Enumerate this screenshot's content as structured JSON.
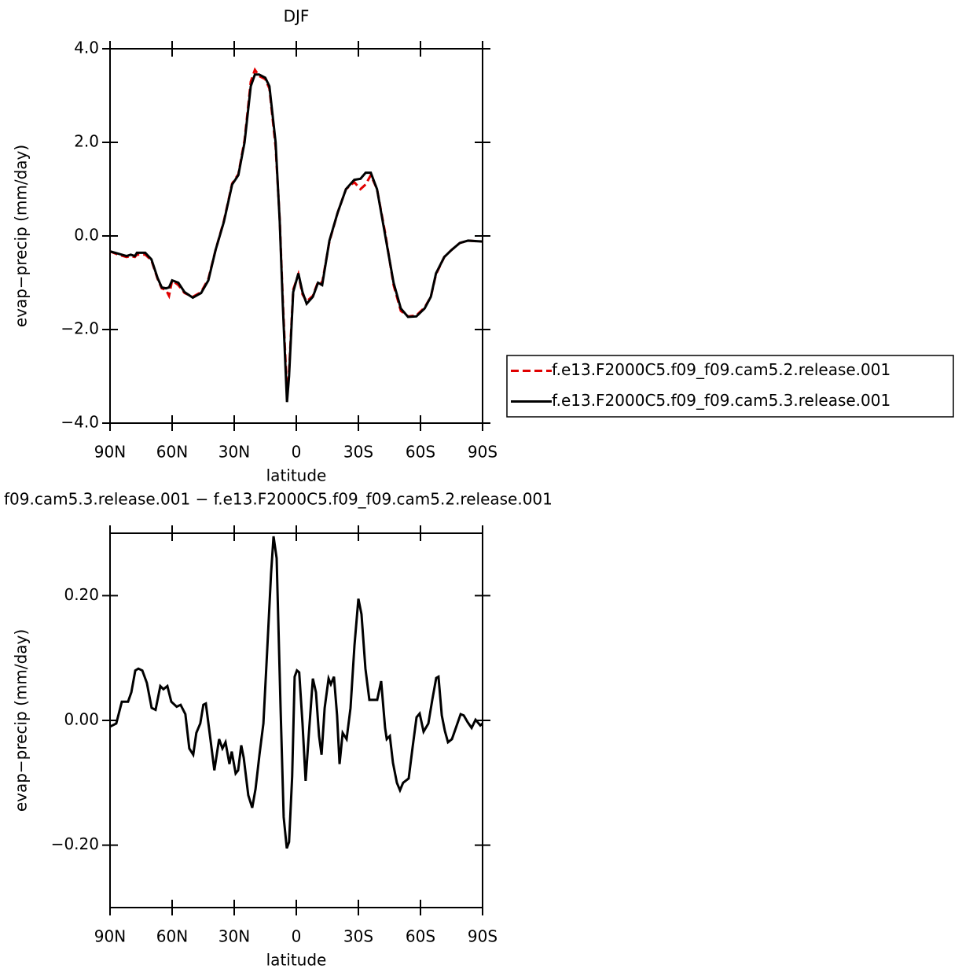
{
  "chart_data": [
    {
      "type": "line",
      "title": "DJF",
      "xlabel": "latitude",
      "ylabel": "evap−precip (mm/day)",
      "x": [
        90,
        86,
        82,
        80,
        78,
        77,
        73,
        70,
        67,
        65,
        63,
        61.5,
        60,
        57,
        54,
        50,
        46,
        42.5,
        39,
        35,
        31,
        28,
        25,
        22,
        20,
        18,
        15,
        13,
        10,
        8,
        6.5,
        4.5,
        3.5,
        1.5,
        -1,
        -3,
        -5,
        -8,
        -10.5,
        -12.5,
        -16,
        -20,
        -24,
        -28,
        -31,
        -33.5,
        -36,
        -39,
        -43,
        -47,
        -50.5,
        -54,
        -58,
        -62,
        -65,
        -67.5,
        -71.5,
        -75,
        -79,
        -83,
        -90
      ],
      "series": [
        {
          "name": "f.e13.F2000C5.f09_f09.cam5.2.release.001",
          "color": "#e00000",
          "dash": true,
          "values": [
            -0.33,
            -0.4,
            -0.45,
            -0.43,
            -0.45,
            -0.4,
            -0.4,
            -0.52,
            -0.92,
            -1.12,
            -1.15,
            -1.28,
            -0.95,
            -1.05,
            -1.22,
            -1.3,
            -1.2,
            -0.92,
            -0.3,
            0.32,
            1.12,
            1.32,
            2.05,
            3.3,
            3.55,
            3.42,
            3.35,
            3.15,
            1.9,
            0.35,
            -1.4,
            -3.35,
            -2.9,
            -1.15,
            -0.82,
            -1.25,
            -1.4,
            -1.28,
            -0.98,
            -1.0,
            -0.12,
            0.5,
            1.0,
            1.15,
            1.0,
            1.1,
            1.3,
            1.0,
            0.05,
            -1.05,
            -1.6,
            -1.72,
            -1.7,
            -1.53,
            -1.3,
            -0.82,
            -0.45,
            -0.3,
            -0.15,
            -0.1,
            -0.12
          ]
        },
        {
          "name": "f.e13.F2000C5.f09_f09.cam5.3.release.001",
          "color": "#000000",
          "dash": false,
          "values": [
            -0.33,
            -0.38,
            -0.43,
            -0.4,
            -0.43,
            -0.36,
            -0.36,
            -0.5,
            -0.9,
            -1.1,
            -1.12,
            -1.1,
            -0.95,
            -1.0,
            -1.2,
            -1.32,
            -1.22,
            -0.95,
            -0.3,
            0.3,
            1.1,
            1.3,
            2.0,
            3.2,
            3.45,
            3.45,
            3.38,
            3.2,
            2.0,
            0.3,
            -1.5,
            -3.55,
            -3.0,
            -1.2,
            -0.8,
            -1.2,
            -1.45,
            -1.3,
            -1.0,
            -1.05,
            -0.1,
            0.5,
            1.0,
            1.2,
            1.22,
            1.35,
            1.35,
            1.0,
            0.0,
            -1.0,
            -1.55,
            -1.73,
            -1.72,
            -1.55,
            -1.3,
            -0.8,
            -0.45,
            -0.3,
            -0.15,
            -0.1,
            -0.12
          ]
        }
      ],
      "xlim": [
        90,
        -90
      ],
      "xticks": [
        {
          "value": 90,
          "label": "90N"
        },
        {
          "value": 60,
          "label": "60N"
        },
        {
          "value": 30,
          "label": "30N"
        },
        0,
        {
          "value": -30,
          "label": "30S"
        },
        {
          "value": -60,
          "label": "60S"
        },
        {
          "value": -90,
          "label": "90S"
        }
      ],
      "ylim": [
        -4,
        4
      ],
      "yticks": [
        {
          "value": -4,
          "label": "−4.0"
        },
        {
          "value": -2,
          "label": "−2.0"
        },
        {
          "value": 0,
          "label": "0.0"
        },
        {
          "value": 2,
          "label": "2.0"
        },
        {
          "value": 4,
          "label": "4.0"
        }
      ],
      "legend": "right"
    },
    {
      "type": "line",
      "title": "f09.cam5.3.release.001 − f.e13.F2000C5.f09_f09.cam5.2.release.001",
      "xlabel": "latitude",
      "ylabel": "evap−precip (mm/day)",
      "x": [
        90,
        87.0,
        84.3,
        81.3,
        79.7,
        77.8,
        76.3,
        74.4,
        72.2,
        69.9,
        68.0,
        65.7,
        64.2,
        62.3,
        60.4,
        57.8,
        55.9,
        53.6,
        51.7,
        49.8,
        48.3,
        46.4,
        44.9,
        43.7,
        41.5,
        39.6,
        37.3,
        35.7,
        34.2,
        32.3,
        31.2,
        29.3,
        28.1,
        26.6,
        25.4,
        23.2,
        21.3,
        19.7,
        17.8,
        15.9,
        14.1,
        12.2,
        11.0,
        9.5,
        7.6,
        6.1,
        4.6,
        3.5,
        2.0,
        0.8,
        -0.3,
        -1.4,
        -3.0,
        -4.5,
        -6.1,
        -8.0,
        -9.5,
        -11.0,
        -12.2,
        -13.7,
        -15.6,
        -16.7,
        -18.2,
        -19.7,
        -20.9,
        -22.4,
        -24.3,
        -26.2,
        -28.1,
        -30.0,
        -31.5,
        -33.4,
        -35.3,
        -36.8,
        -39.1,
        -41.0,
        -42.9,
        -43.7,
        -45.2,
        -46.7,
        -48.6,
        -50.1,
        -51.6,
        -54.3,
        -56.2,
        -58.1,
        -59.6,
        -61.5,
        -63.8,
        -65.7,
        -67.6,
        -68.7,
        -70.3,
        -71.8,
        -73.3,
        -75.2,
        -77.1,
        -79.4,
        -80.9,
        -82.8,
        -84.7,
        -86.6,
        -88.9,
        -90
      ],
      "series": [
        {
          "color": "#000000",
          "dash": false,
          "values": [
            -0.01,
            -0.005,
            0.03,
            0.03,
            0.045,
            0.08,
            0.083,
            0.08,
            0.06,
            0.02,
            0.017,
            0.055,
            0.05,
            0.055,
            0.03,
            0.022,
            0.025,
            0.01,
            -0.045,
            -0.055,
            -0.02,
            -0.005,
            0.025,
            0.027,
            -0.03,
            -0.08,
            -0.03,
            -0.045,
            -0.035,
            -0.07,
            -0.05,
            -0.085,
            -0.08,
            -0.04,
            -0.06,
            -0.12,
            -0.14,
            -0.11,
            -0.055,
            -0.005,
            0.11,
            0.235,
            0.295,
            0.26,
            0.02,
            -0.155,
            -0.205,
            -0.195,
            -0.09,
            0.07,
            0.08,
            0.077,
            -0.005,
            -0.097,
            -0.02,
            0.067,
            0.045,
            -0.025,
            -0.055,
            0.02,
            0.067,
            0.058,
            0.07,
            0.008,
            -0.07,
            -0.02,
            -0.03,
            0.02,
            0.12,
            0.195,
            0.17,
            0.083,
            0.033,
            0.033,
            0.033,
            0.063,
            -0.012,
            -0.03,
            -0.025,
            -0.068,
            -0.1,
            -0.112,
            -0.1,
            -0.093,
            -0.043,
            0.005,
            0.011,
            -0.018,
            -0.005,
            0.033,
            0.068,
            0.07,
            0.008,
            -0.017,
            -0.035,
            -0.03,
            -0.012,
            0.01,
            0.008,
            -0.003,
            -0.012,
            0.001,
            -0.008,
            -0.005
          ]
        }
      ],
      "xlim": [
        90,
        -90
      ],
      "xticks": [
        {
          "value": 90,
          "label": "90N"
        },
        {
          "value": 60,
          "label": "60N"
        },
        {
          "value": 30,
          "label": "30N"
        },
        0,
        {
          "value": -30,
          "label": "30S"
        },
        {
          "value": -60,
          "label": "60S"
        },
        {
          "value": -90,
          "label": "90S"
        }
      ],
      "ylim": [
        -0.3,
        0.3
      ],
      "yticks": [
        {
          "value": -0.2,
          "label": "−0.20"
        },
        {
          "value": 0,
          "label": "0.00"
        },
        {
          "value": 0.2,
          "label": "0.20"
        }
      ]
    }
  ]
}
